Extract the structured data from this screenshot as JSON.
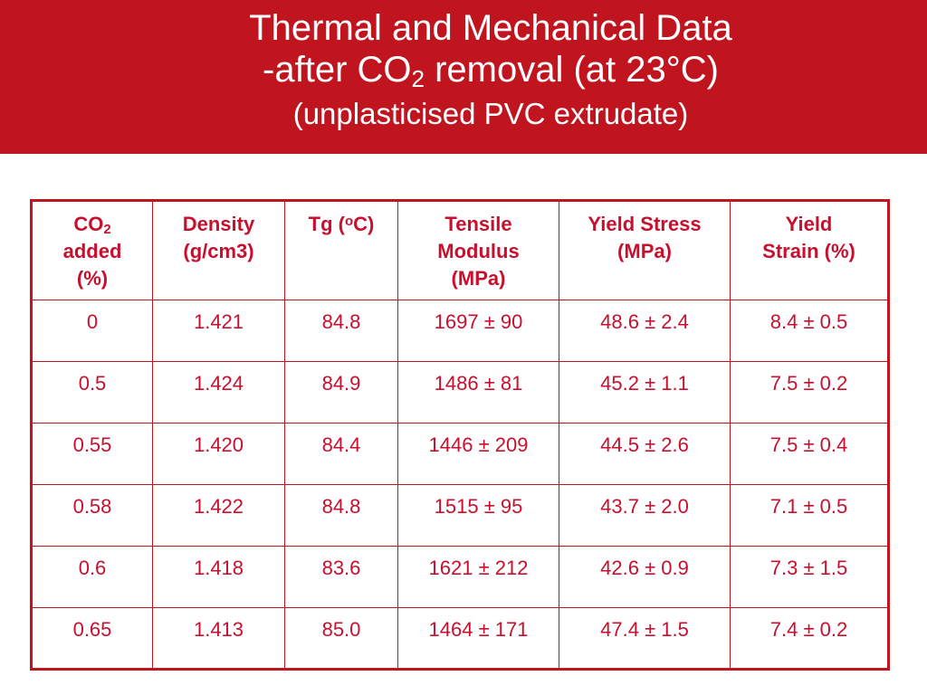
{
  "slide": {
    "title_line1": "Thermal and Mechanical Data",
    "title_line2_prefix": "-after CO",
    "title_line2_sub": "2",
    "title_line2_suffix": " removal (at 23°C)",
    "title_line3": "(unplasticised PVC extrudate)"
  },
  "table": {
    "headers": {
      "co2_main": "CO",
      "co2_sub": "2",
      "co2_rest1": "added",
      "co2_rest2": "(%)",
      "density1": "Density",
      "density2": "(g/cm3)",
      "tg_prefix": "Tg (",
      "tg_sup": "o",
      "tg_suffix": "C)",
      "tensile1": "Tensile",
      "tensile2": "Modulus",
      "tensile3": "(MPa)",
      "ystress1": "Yield Stress",
      "ystress2": "(MPa)",
      "ystrain1": "Yield",
      "ystrain2": "Strain (%)"
    },
    "rows": [
      [
        "0",
        "1.421",
        "84.8",
        "1697 ± 90",
        "48.6 ± 2.4",
        "8.4 ± 0.5"
      ],
      [
        "0.5",
        "1.424",
        "84.9",
        "1486 ± 81",
        "45.2 ± 1.1",
        "7.5 ± 0.2"
      ],
      [
        "0.55",
        "1.420",
        "84.4",
        "1446 ± 209",
        "44.5 ± 2.6",
        "7.5 ± 0.4"
      ],
      [
        "0.58",
        "1.422",
        "84.8",
        "1515 ± 95",
        "43.7 ± 2.0",
        "7.1 ± 0.5"
      ],
      [
        "0.6",
        "1.418",
        "83.6",
        "1621 ± 212",
        "42.6 ± 0.9",
        "7.3 ± 1.5"
      ],
      [
        "0.65",
        "1.413",
        "85.0",
        "1464 ± 171",
        "47.4 ± 1.5",
        "7.4 ± 0.2"
      ]
    ]
  },
  "colors": {
    "accent": "#c0141f",
    "text": "#c8102e"
  }
}
